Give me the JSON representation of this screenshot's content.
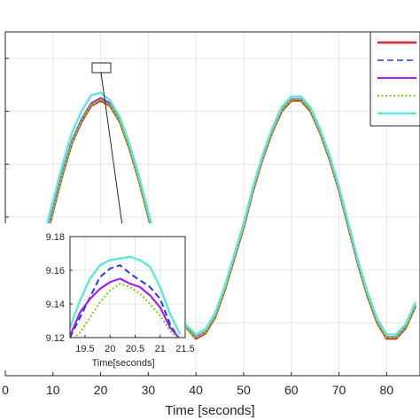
{
  "chart_data": [
    {
      "type": "line",
      "title": "",
      "xlabel": "Time [seconds]",
      "ylabel": "",
      "xlim": [
        0,
        87
      ],
      "ylim": [
        8.6,
        9.25
      ],
      "x_ticks": [
        0,
        10,
        20,
        30,
        40,
        50,
        60,
        70,
        80
      ],
      "grid": true,
      "legend_placement": "top-right",
      "series": [
        {
          "color": "#d62728",
          "style": "solid",
          "width": 2.4,
          "x": [
            0,
            2,
            4,
            6,
            8,
            10,
            12,
            14,
            16,
            18,
            20,
            22,
            24,
            26,
            28,
            30,
            32,
            34,
            36,
            38,
            40,
            42,
            44,
            46,
            48,
            50,
            52,
            54,
            56,
            58,
            60,
            62,
            64,
            66,
            68,
            70,
            72,
            74,
            76,
            78,
            80,
            82,
            84,
            86
          ],
          "y": [
            8.67,
            8.7,
            8.71,
            8.78,
            8.84,
            8.91,
            8.98,
            9.04,
            9.08,
            9.11,
            9.12,
            9.11,
            9.08,
            9.03,
            8.97,
            8.9,
            8.83,
            8.77,
            8.72,
            8.69,
            8.67,
            8.68,
            8.71,
            8.76,
            8.82,
            8.88,
            8.95,
            9.01,
            9.06,
            9.1,
            9.12,
            9.12,
            9.1,
            9.06,
            9.01,
            8.95,
            8.88,
            8.81,
            8.75,
            8.7,
            8.67,
            8.67,
            8.69,
            8.73
          ]
        },
        {
          "color": "#1f3fd6",
          "style": "dashed",
          "width": 1.6,
          "x": [
            0,
            2,
            4,
            6,
            8,
            10,
            12,
            14,
            16,
            18,
            20,
            22,
            24,
            26,
            28,
            30,
            32,
            34,
            36,
            38,
            40,
            42,
            44,
            46,
            48,
            50,
            52,
            54,
            56,
            58,
            60,
            62,
            64,
            66,
            68,
            70,
            72,
            74,
            76,
            78,
            80,
            82,
            84,
            86
          ],
          "y": [
            8.67,
            8.7,
            8.71,
            8.78,
            8.84,
            8.91,
            8.98,
            9.04,
            9.08,
            9.115,
            9.125,
            9.115,
            9.085,
            9.035,
            8.975,
            8.905,
            8.835,
            8.772,
            8.722,
            8.69,
            8.673,
            8.683,
            8.713,
            8.763,
            8.823,
            8.883,
            8.953,
            9.013,
            9.063,
            9.103,
            9.123,
            9.123,
            9.103,
            9.063,
            9.013,
            8.953,
            8.883,
            8.813,
            8.753,
            8.703,
            8.673,
            8.673,
            8.693,
            8.733
          ]
        },
        {
          "color": "#a020f0",
          "style": "solid",
          "width": 2,
          "x": [
            0,
            2,
            4,
            6,
            8,
            10,
            12,
            14,
            16,
            18,
            20,
            22,
            24,
            26,
            28,
            30,
            32,
            34,
            36,
            38,
            40,
            42,
            44,
            46,
            48,
            50,
            52,
            54,
            56,
            58,
            60,
            62,
            64,
            66,
            68,
            70,
            72,
            74,
            76,
            78,
            80,
            82,
            84,
            86
          ],
          "y": [
            8.67,
            8.7,
            8.715,
            8.785,
            8.845,
            8.915,
            8.985,
            9.045,
            9.085,
            9.115,
            9.125,
            9.115,
            9.085,
            9.035,
            8.975,
            8.905,
            8.835,
            8.772,
            8.722,
            8.69,
            8.673,
            8.683,
            8.713,
            8.763,
            8.823,
            8.883,
            8.953,
            9.013,
            9.063,
            9.103,
            9.123,
            9.123,
            9.103,
            9.063,
            9.013,
            8.953,
            8.883,
            8.813,
            8.753,
            8.703,
            8.673,
            8.673,
            8.693,
            8.733
          ]
        },
        {
          "color": "#7ed321",
          "style": "dotted",
          "width": 2,
          "x": [
            0,
            2,
            4,
            6,
            8,
            10,
            12,
            14,
            16,
            18,
            20,
            22,
            24,
            26,
            28,
            30,
            32,
            34,
            36,
            38,
            40,
            42,
            44,
            46,
            48,
            50,
            52,
            54,
            56,
            58,
            60,
            62,
            64,
            66,
            68,
            70,
            72,
            74,
            76,
            78,
            80,
            82,
            84,
            86
          ],
          "y": [
            8.67,
            8.7,
            8.712,
            8.782,
            8.842,
            8.912,
            8.982,
            9.042,
            9.082,
            9.112,
            9.122,
            9.112,
            9.082,
            9.032,
            8.972,
            8.902,
            8.832,
            8.77,
            8.72,
            8.689,
            8.672,
            8.682,
            8.712,
            8.762,
            8.822,
            8.882,
            8.952,
            9.012,
            9.062,
            9.102,
            9.122,
            9.122,
            9.102,
            9.062,
            9.012,
            8.952,
            8.882,
            8.812,
            8.752,
            8.702,
            8.672,
            8.672,
            8.692,
            8.732
          ]
        },
        {
          "color": "#5ee6de",
          "style": "solid",
          "width": 2.4,
          "x": [
            0,
            2,
            4,
            6,
            8,
            10,
            12,
            14,
            16,
            18,
            20,
            22,
            24,
            26,
            28,
            30,
            32,
            34,
            36,
            38,
            40,
            42,
            44,
            46,
            48,
            50,
            52,
            54,
            56,
            58,
            60,
            62,
            64,
            66,
            68,
            70,
            72,
            74,
            76,
            78,
            80,
            82,
            84,
            86
          ],
          "y": [
            8.68,
            8.71,
            8.73,
            8.8,
            8.86,
            8.93,
            9.0,
            9.06,
            9.1,
            9.13,
            9.135,
            9.12,
            9.09,
            9.04,
            8.98,
            8.91,
            8.84,
            8.778,
            8.728,
            8.695,
            8.678,
            8.688,
            8.718,
            8.768,
            8.828,
            8.888,
            8.958,
            9.018,
            9.068,
            9.108,
            9.128,
            9.128,
            9.108,
            9.068,
            9.018,
            8.958,
            8.888,
            8.818,
            8.758,
            8.708,
            8.678,
            8.678,
            8.698,
            8.738
          ]
        }
      ]
    },
    {
      "type": "line",
      "title": "",
      "xlabel": "Time[seconds]",
      "ylabel": "",
      "xlim": [
        19.2,
        21.5
      ],
      "ylim": [
        9.12,
        9.18
      ],
      "x_ticks": [
        19.5,
        20,
        20.5,
        21,
        21.5
      ],
      "x_tick_labels": [
        "19.5",
        "20",
        "20.5",
        "21",
        "21.5"
      ],
      "y_ticks": [
        9.12,
        9.14,
        9.16,
        9.18
      ],
      "y_tick_labels": [
        "9.12",
        "9.14",
        "9.16",
        "9.18"
      ],
      "grid": true,
      "series": [
        {
          "color": "#1f3fd6",
          "style": "dashed",
          "width": 2,
          "x": [
            19.2,
            19.4,
            19.6,
            19.8,
            20.0,
            20.2,
            20.4,
            20.6,
            20.8,
            21.0,
            21.2,
            21.4
          ],
          "y": [
            9.12,
            9.132,
            9.144,
            9.156,
            9.161,
            9.163,
            9.158,
            9.154,
            9.15,
            9.143,
            9.128,
            9.118
          ]
        },
        {
          "color": "#a020f0",
          "style": "solid",
          "width": 2.2,
          "x": [
            19.2,
            19.4,
            19.6,
            19.8,
            20.0,
            20.2,
            20.4,
            20.6,
            20.8,
            21.0,
            21.2,
            21.4
          ],
          "y": [
            9.121,
            9.135,
            9.143,
            9.149,
            9.153,
            9.155,
            9.152,
            9.15,
            9.145,
            9.138,
            9.126,
            9.119
          ]
        },
        {
          "color": "#7ed321",
          "style": "dotted",
          "width": 2.2,
          "x": [
            19.2,
            19.4,
            19.6,
            19.8,
            20.0,
            20.2,
            20.4,
            20.6,
            20.8,
            21.0,
            21.2,
            21.4
          ],
          "y": [
            9.118,
            9.123,
            9.132,
            9.141,
            9.148,
            9.152,
            9.15,
            9.146,
            9.14,
            9.133,
            9.124,
            9.118
          ]
        },
        {
          "color": "#5ee6de",
          "style": "solid",
          "width": 2.4,
          "x": [
            19.2,
            19.4,
            19.6,
            19.8,
            20.0,
            20.2,
            20.4,
            20.6,
            20.8,
            21.0,
            21.2,
            21.4
          ],
          "y": [
            9.126,
            9.142,
            9.155,
            9.163,
            9.166,
            9.167,
            9.168,
            9.166,
            9.162,
            9.15,
            9.134,
            9.122
          ]
        }
      ]
    }
  ]
}
